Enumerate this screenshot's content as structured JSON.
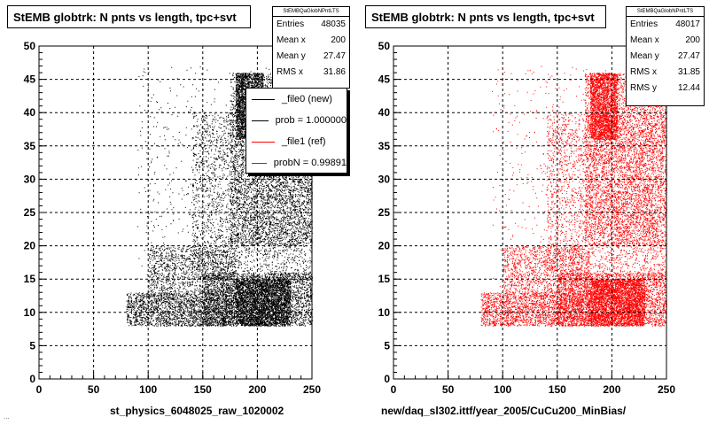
{
  "chart_data": [
    {
      "type": "scatter",
      "title": "StEMB globtrk: N pnts vs length, tpc+svt",
      "xlabel": "st_physics_6048025_raw_1020002",
      "ylabel": "",
      "xlim": [
        0,
        250
      ],
      "ylim": [
        0,
        50
      ],
      "xticks": [
        "0",
        "50",
        "100",
        "150",
        "200",
        "250"
      ],
      "yticks": [
        "0",
        "5",
        "10",
        "15",
        "20",
        "25",
        "30",
        "35",
        "40",
        "45",
        "50"
      ],
      "grid": true,
      "marker_color": "#000000",
      "stats": {
        "name": "StEMBQaGlobNPntLTS",
        "rows": [
          {
            "label": "Entries",
            "value": "48035"
          },
          {
            "label": "Mean x",
            "value": "200"
          },
          {
            "label": "Mean y",
            "value": "27.47"
          },
          {
            "label": "RMS x",
            "value": "31.86"
          }
        ]
      },
      "legend": {
        "placement": "top-right",
        "entries": [
          {
            "label": "_file0 (new)",
            "color": "#000000"
          },
          {
            "label": "prob = 1.000000",
            "color": "#000000"
          },
          {
            "label": "_file1 (ref)",
            "color": "#ff0000"
          },
          {
            "label": "probN = 0.99891",
            "color": "#ff0000"
          }
        ]
      },
      "density_regions": [
        {
          "x": [
            80,
            180
          ],
          "y": [
            8,
            13
          ],
          "weight": 2200
        },
        {
          "x": [
            100,
            180
          ],
          "y": [
            13,
            20
          ],
          "weight": 1200
        },
        {
          "x": [
            150,
            250
          ],
          "y": [
            8,
            16
          ],
          "weight": 2800
        },
        {
          "x": [
            180,
            230
          ],
          "y": [
            8,
            15
          ],
          "weight": 3200
        },
        {
          "x": [
            140,
            250
          ],
          "y": [
            15,
            40
          ],
          "weight": 3200
        },
        {
          "x": [
            175,
            250
          ],
          "y": [
            20,
            46
          ],
          "weight": 4000
        },
        {
          "x": [
            180,
            205
          ],
          "y": [
            36,
            46
          ],
          "weight": 2200
        },
        {
          "x": [
            90,
            250
          ],
          "y": [
            10,
            47
          ],
          "weight": 700
        }
      ]
    },
    {
      "type": "scatter",
      "title": "StEMB globtrk: N pnts vs length, tpc+svt",
      "xlabel": "new/daq_sl302.ittf/year_2005/CuCu200_MinBias/",
      "ylabel": "",
      "xlim": [
        0,
        250
      ],
      "ylim": [
        0,
        50
      ],
      "xticks": [
        "0",
        "50",
        "100",
        "150",
        "200",
        "250"
      ],
      "yticks": [
        "0",
        "5",
        "10",
        "15",
        "20",
        "25",
        "30",
        "35",
        "40",
        "45",
        "50"
      ],
      "grid": true,
      "marker_color": "#ff0000",
      "stats": {
        "name": "StEMBQaGlobNPntLTS",
        "rows": [
          {
            "label": "Entries",
            "value": "48017"
          },
          {
            "label": "Mean x",
            "value": "200"
          },
          {
            "label": "Mean y",
            "value": "27.47"
          },
          {
            "label": "RMS x",
            "value": "31.85"
          },
          {
            "label": "RMS y",
            "value": "12.44"
          }
        ]
      },
      "density_regions": [
        {
          "x": [
            80,
            180
          ],
          "y": [
            8,
            13
          ],
          "weight": 2200
        },
        {
          "x": [
            100,
            180
          ],
          "y": [
            13,
            20
          ],
          "weight": 1200
        },
        {
          "x": [
            150,
            250
          ],
          "y": [
            8,
            16
          ],
          "weight": 2800
        },
        {
          "x": [
            180,
            230
          ],
          "y": [
            8,
            15
          ],
          "weight": 3200
        },
        {
          "x": [
            140,
            250
          ],
          "y": [
            15,
            40
          ],
          "weight": 3200
        },
        {
          "x": [
            175,
            250
          ],
          "y": [
            20,
            46
          ],
          "weight": 4000
        },
        {
          "x": [
            180,
            205
          ],
          "y": [
            36,
            46
          ],
          "weight": 2200
        },
        {
          "x": [
            90,
            250
          ],
          "y": [
            10,
            47
          ],
          "weight": 700
        }
      ]
    }
  ],
  "footer": {
    "left_text": "..."
  }
}
